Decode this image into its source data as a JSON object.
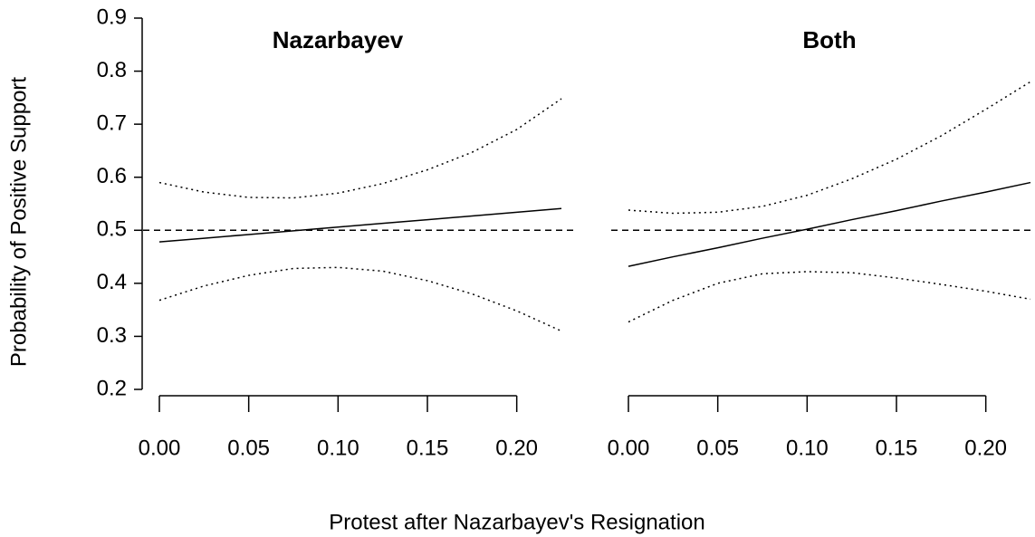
{
  "chart_data": {
    "type": "line",
    "ylabel": "Probability of Positive Support",
    "xlabel": "Protest after Nazarbayev's Resignation",
    "ylim": [
      0.2,
      0.9
    ],
    "yticks": [
      0.2,
      0.3,
      0.4,
      0.5,
      0.6,
      0.7,
      0.8,
      0.9
    ],
    "reference_line": 0.5,
    "panels": [
      {
        "title": "Nazarbayev",
        "x": [
          0,
          0.025,
          0.05,
          0.075,
          0.1,
          0.125,
          0.15,
          0.175,
          0.2,
          0.225
        ],
        "xlim": [
          0,
          0.225
        ],
        "xticks": [
          {
            "value": 0,
            "label": "0.00"
          },
          {
            "value": 0.05,
            "label": "0.05"
          },
          {
            "value": 0.1,
            "label": "0.10"
          },
          {
            "value": 0.15,
            "label": "0.15"
          },
          {
            "value": 0.2,
            "label": "0.20"
          }
        ],
        "series": [
          {
            "color": "#000000",
            "dash": "solid",
            "values": [
              0.478,
              0.485,
              0.492,
              0.499,
              0.506,
              0.513,
              0.52,
              0.527,
              0.534,
              0.541
            ]
          },
          {
            "color": "#000000",
            "dash": "dotted",
            "values": [
              0.59,
              0.572,
              0.562,
              0.561,
              0.57,
              0.588,
              0.614,
              0.647,
              0.69,
              0.748
            ]
          },
          {
            "color": "#000000",
            "dash": "dotted",
            "values": [
              0.368,
              0.395,
              0.415,
              0.428,
              0.43,
              0.423,
              0.405,
              0.38,
              0.348,
              0.31
            ]
          }
        ]
      },
      {
        "title": "Both",
        "x": [
          0,
          0.025,
          0.05,
          0.075,
          0.1,
          0.125,
          0.15,
          0.175,
          0.2,
          0.225
        ],
        "xlim": [
          0,
          0.225
        ],
        "xticks": [
          {
            "value": 0,
            "label": "0.00"
          },
          {
            "value": 0.05,
            "label": "0.05"
          },
          {
            "value": 0.1,
            "label": "0.10"
          },
          {
            "value": 0.15,
            "label": "0.15"
          },
          {
            "value": 0.2,
            "label": "0.20"
          }
        ],
        "series": [
          {
            "color": "#000000",
            "dash": "solid",
            "values": [
              0.432,
              0.45,
              0.467,
              0.485,
              0.502,
              0.52,
              0.537,
              0.555,
              0.572,
              0.59
            ]
          },
          {
            "color": "#000000",
            "dash": "dotted",
            "values": [
              0.538,
              0.532,
              0.534,
              0.545,
              0.566,
              0.597,
              0.634,
              0.678,
              0.728,
              0.78
            ]
          },
          {
            "color": "#000000",
            "dash": "dotted",
            "values": [
              0.327,
              0.368,
              0.4,
              0.418,
              0.422,
              0.42,
              0.41,
              0.398,
              0.385,
              0.37
            ]
          }
        ]
      }
    ]
  }
}
